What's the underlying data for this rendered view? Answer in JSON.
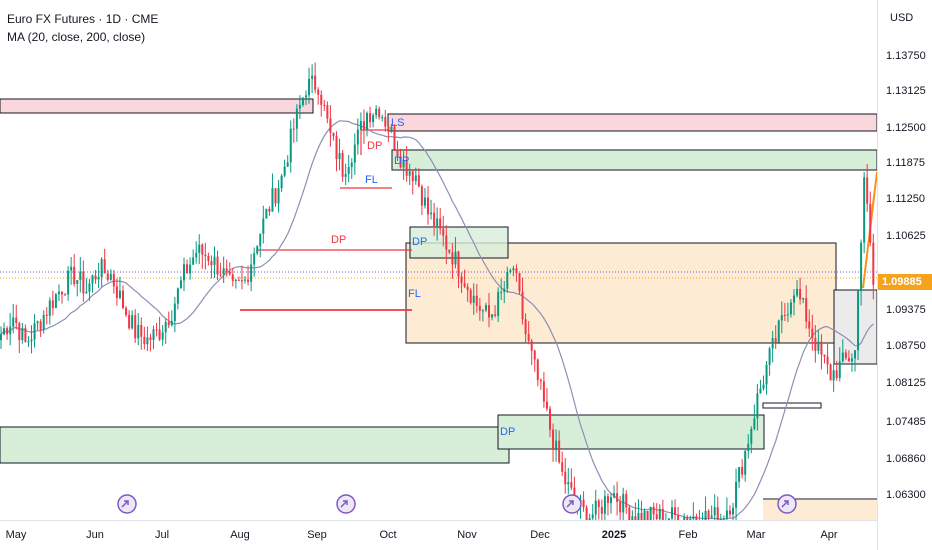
{
  "legend": {
    "title": "Euro FX Futures · 1D · CME",
    "indicator": "MA (20, close, 200, close)"
  },
  "price_axis": {
    "currency": "USD",
    "ticks": [
      "1.13750",
      "1.13125",
      "1.12500",
      "1.11875",
      "1.11250",
      "1.10625",
      "1.09375",
      "1.08750",
      "1.08125",
      "1.07485",
      "1.06860",
      "1.06300"
    ],
    "current_price": "1.09885",
    "current_price_color": "#f7a21b"
  },
  "time_axis": {
    "labels": [
      "May",
      "Jun",
      "Jul",
      "Aug",
      "Sep",
      "Oct",
      "Nov",
      "Dec",
      "2025",
      "Feb",
      "Mar",
      "Apr"
    ]
  },
  "annotations": {
    "ls": "LS",
    "dp1": "DP",
    "dp2": "DP",
    "dp3": "DP",
    "dp4": "DP",
    "dp5": "DP",
    "fl1": "FL",
    "fl2": "FL"
  },
  "colors": {
    "up": "#089981",
    "down": "#f23645",
    "ma": "#8c8fb5",
    "green_zone": "#d7efd9",
    "pink_zone": "#f9d7dd",
    "orange_zone": "#fdebd3",
    "grey_zone": "#ebebeb",
    "event_icon": "#7e57c2"
  },
  "chart_data": {
    "type": "candlestick",
    "symbol": "Euro FX Futures",
    "interval": "1D",
    "exchange": "CME",
    "currency": "USD",
    "y_ticks": [
      1.1375,
      1.13125,
      1.125,
      1.11875,
      1.1125,
      1.10625,
      1.09375,
      1.0875,
      1.08125,
      1.07485,
      1.0686,
      1.063
    ],
    "x_labels": [
      "May",
      "Jun",
      "Jul",
      "Aug",
      "Sep",
      "Oct",
      "Nov",
      "Dec",
      "2025",
      "Feb",
      "Mar",
      "Apr"
    ],
    "last_price": 1.09885,
    "ylim": [
      1.0595,
      1.1435
    ],
    "moving_average": {
      "periods": [
        20,
        200
      ],
      "source": "close"
    },
    "price_path": [
      [
        0,
        1.0905
      ],
      [
        4,
        1.0935
      ],
      [
        8,
        1.0888
      ],
      [
        12,
        1.092
      ],
      [
        16,
        1.0955
      ],
      [
        20,
        1.0985
      ],
      [
        24,
        1.1005
      ],
      [
        28,
        1.098
      ],
      [
        32,
        1.1015
      ],
      [
        36,
        1.1005
      ],
      [
        40,
        1.0955
      ],
      [
        44,
        1.0908
      ],
      [
        48,
        1.0895
      ],
      [
        52,
        1.091
      ],
      [
        56,
        1.0945
      ],
      [
        60,
        1.1005
      ],
      [
        64,
        1.1045
      ],
      [
        68,
        1.1038
      ],
      [
        72,
        1.1015
      ],
      [
        76,
        1.0978
      ],
      [
        80,
        1.0995
      ],
      [
        84,
        1.1065
      ],
      [
        88,
        1.1122
      ],
      [
        92,
        1.117
      ],
      [
        96,
        1.1255
      ],
      [
        100,
        1.1325
      ],
      [
        104,
        1.133
      ],
      [
        108,
        1.124
      ],
      [
        112,
        1.1185
      ],
      [
        116,
        1.1225
      ],
      [
        120,
        1.128
      ],
      [
        124,
        1.129
      ],
      [
        128,
        1.1245
      ],
      [
        132,
        1.1195
      ],
      [
        136,
        1.1175
      ],
      [
        140,
        1.111
      ],
      [
        144,
        1.1075
      ],
      [
        148,
        1.104
      ],
      [
        152,
        1.0998
      ],
      [
        156,
        1.0955
      ],
      [
        160,
        1.0932
      ],
      [
        164,
        1.097
      ],
      [
        168,
        1.1018
      ],
      [
        172,
        1.0905
      ],
      [
        176,
        1.0825
      ],
      [
        180,
        1.0745
      ],
      [
        184,
        1.0665
      ],
      [
        188,
        1.0622
      ],
      [
        192,
        1.0595
      ],
      [
        196,
        1.0605
      ],
      [
        200,
        1.064
      ],
      [
        204,
        1.0615
      ],
      [
        208,
        1.0595
      ],
      [
        236,
        1.0595
      ],
      [
        240,
        1.0625
      ],
      [
        244,
        1.0705
      ],
      [
        248,
        1.0795
      ],
      [
        252,
        1.0865
      ],
      [
        256,
        1.0925
      ],
      [
        260,
        1.0985
      ],
      [
        264,
        1.0935
      ],
      [
        268,
        1.0875
      ],
      [
        272,
        1.0835
      ],
      [
        276,
        1.0855
      ],
      [
        280,
        1.0875
      ],
      [
        283,
        1.1175
      ],
      [
        286,
        1.0988
      ]
    ]
  }
}
